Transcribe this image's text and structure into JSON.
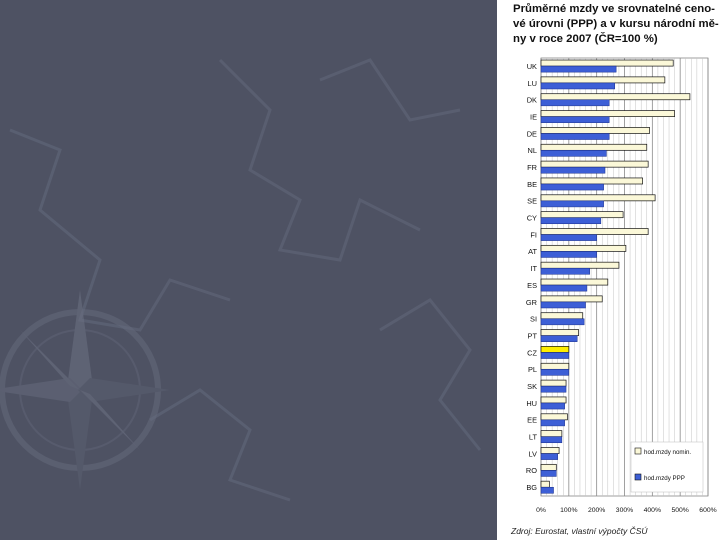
{
  "slide": {
    "background_color": "#4e5263",
    "decor": "compass-rose-map-background"
  },
  "panel": {
    "title_lines": [
      "Průměrné mzdy ve srovnatelné ceno-",
      "vé úrovni (PPP) a v kursu národní mě-",
      "ny v roce 2007 (ČR=100 %)"
    ],
    "source": "Zdroj: Eurostat, vlastní výpočty ČSÚ"
  },
  "chart_data": {
    "type": "bar",
    "orientation": "horizontal",
    "title": "Průměrné mzdy ve srovnatelné cenové úrovni (PPP) a v kursu národní měny v roce 2007 (ČR=100 %)",
    "categories": [
      "UK",
      "LU",
      "DK",
      "IE",
      "DE",
      "NL",
      "FR",
      "BE",
      "SE",
      "CY",
      "FI",
      "AT",
      "IT",
      "ES",
      "GR",
      "SI",
      "PT",
      "CZ",
      "PL",
      "SK",
      "HU",
      "EE",
      "LT",
      "LV",
      "RO",
      "BG"
    ],
    "series": [
      {
        "name": "hod.mzdy nomin.",
        "color": "#fbf8d8",
        "values": [
          475,
          445,
          535,
          480,
          390,
          380,
          385,
          365,
          410,
          295,
          385,
          305,
          280,
          240,
          220,
          150,
          135,
          100,
          100,
          90,
          90,
          95,
          75,
          65,
          55,
          30
        ]
      },
      {
        "name": "hod.mzdy PPP",
        "color": "#3d5fd6",
        "values": [
          270,
          265,
          245,
          245,
          245,
          235,
          230,
          225,
          225,
          215,
          200,
          200,
          175,
          165,
          160,
          155,
          130,
          100,
          100,
          90,
          85,
          85,
          75,
          60,
          55,
          45
        ]
      }
    ],
    "highlight": {
      "category": "CZ",
      "color": "#ffee00"
    },
    "xlim": [
      0,
      600
    ],
    "xticks": [
      "0%",
      "100%",
      "200%",
      "300%",
      "400%",
      "500%",
      "600%"
    ],
    "grid": true,
    "legend": "right-bottom"
  }
}
